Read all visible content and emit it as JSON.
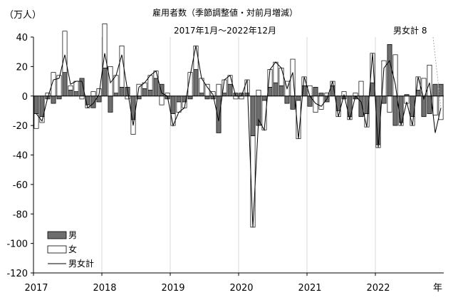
{
  "chart_data": {
    "type": "bar",
    "title": "雇用者数（季節調整値・対前月増減）",
    "subtitle": "2017年1月～2022年12月",
    "ylabel": "（万人）",
    "xlabel": "年",
    "ylim": [
      -120,
      40
    ],
    "yticks": [
      40,
      20,
      0,
      -20,
      -40,
      -60,
      -80,
      -100,
      -120
    ],
    "year_labels": [
      "2017",
      "2018",
      "2019",
      "2020",
      "2021",
      "2022"
    ],
    "legend": [
      "男",
      "女",
      "男女計"
    ],
    "annotation": "男女計 8",
    "colors": {
      "male": "#6e6e6e",
      "female": "#ffffff",
      "line": "#000000",
      "grid": "#d9d9d9"
    },
    "series": [
      {
        "name": "男",
        "values": [
          -12,
          -14,
          -2,
          -5,
          -2,
          16,
          4,
          3,
          12,
          -6,
          -8,
          -4,
          19,
          -11,
          2,
          6,
          6,
          -16,
          -2,
          5,
          4,
          12,
          8,
          -2,
          -12,
          -4,
          -4,
          -2,
          18,
          2,
          -2,
          -2,
          -25,
          2,
          8,
          2,
          2,
          2,
          -27,
          -20,
          -3,
          6,
          9,
          7,
          -5,
          -9,
          -3,
          7,
          -7,
          6,
          2,
          -4,
          7,
          -10,
          -2,
          -14,
          -2,
          -14,
          -12,
          9,
          -33,
          -5,
          35,
          -20,
          -18,
          1,
          -14,
          4,
          -14,
          -12,
          8,
          8
        ]
      },
      {
        "name": "女",
        "values": [
          -10,
          -4,
          2,
          16,
          14,
          28,
          3,
          7,
          -2,
          -2,
          3,
          5,
          30,
          20,
          12,
          28,
          -2,
          -10,
          8,
          4,
          10,
          5,
          -6,
          2,
          -8,
          -7,
          -4,
          16,
          16,
          10,
          8,
          3,
          8,
          9,
          6,
          -2,
          -2,
          9,
          -62,
          4,
          -20,
          12,
          14,
          12,
          10,
          25,
          -26,
          6,
          7,
          -11,
          -9,
          2,
          3,
          -4,
          3,
          -2,
          2,
          10,
          -9,
          20,
          -2,
          24,
          -11,
          28,
          -2,
          -5,
          -6,
          9,
          12,
          21,
          -13,
          -16
        ]
      },
      {
        "name": "男女計",
        "values": [
          -12,
          -17,
          -1,
          11,
          12,
          28,
          8,
          10,
          10,
          -8,
          -5,
          1,
          29,
          9,
          14,
          28,
          4,
          -20,
          6,
          9,
          14,
          17,
          2,
          0,
          -20,
          -11,
          -8,
          14,
          34,
          12,
          6,
          1,
          -17,
          11,
          14,
          0,
          0,
          11,
          -89,
          -16,
          -23,
          18,
          23,
          19,
          5,
          16,
          -29,
          13,
          0,
          -5,
          -7,
          -2,
          10,
          -14,
          1,
          -16,
          0,
          -4,
          -21,
          29,
          -35,
          19,
          24,
          8,
          -20,
          -4,
          -20,
          13,
          -2,
          9,
          -25,
          -8
        ]
      }
    ]
  }
}
